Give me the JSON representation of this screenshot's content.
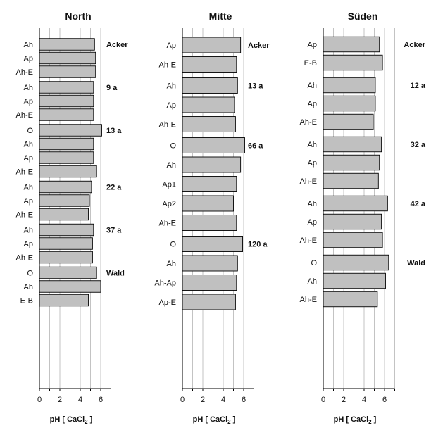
{
  "figure": {
    "xlabel": "pH [ CaCl",
    "xlabel_sub": "2",
    "xlabel_close": " ]"
  },
  "chart_data": [
    {
      "type": "bar",
      "orientation": "horizontal",
      "title": "North",
      "xlabel": "pH [ CaCl2 ]",
      "xlim": [
        0,
        7
      ],
      "xticks": [
        0,
        2,
        4,
        6
      ],
      "grid": true,
      "groups": [
        {
          "label": "Acker",
          "items": [
            {
              "label": "Ah",
              "value": 5.4
            },
            {
              "label": "Ap",
              "value": 5.5
            },
            {
              "label": "Ah-E",
              "value": 5.5
            }
          ]
        },
        {
          "label": "9 a",
          "items": [
            {
              "label": "Ah",
              "value": 5.3
            },
            {
              "label": "Ap",
              "value": 5.3
            },
            {
              "label": "Ah-E",
              "value": 5.3
            }
          ]
        },
        {
          "label": "13 a",
          "items": [
            {
              "label": "O",
              "value": 6.1
            },
            {
              "label": "Ah",
              "value": 5.3
            },
            {
              "label": "Ap",
              "value": 5.3
            },
            {
              "label": "Ah-E",
              "value": 5.6
            }
          ]
        },
        {
          "label": "22 a",
          "items": [
            {
              "label": "Ah",
              "value": 5.1
            },
            {
              "label": "Ap",
              "value": 4.9
            },
            {
              "label": "Ah-E",
              "value": 4.8
            }
          ]
        },
        {
          "label": "37 a",
          "items": [
            {
              "label": "Ah",
              "value": 5.3
            },
            {
              "label": "Ap",
              "value": 5.2
            },
            {
              "label": "Ah-E",
              "value": 5.2
            }
          ]
        },
        {
          "label": "Wald",
          "items": [
            {
              "label": "O",
              "value": 5.6
            },
            {
              "label": "Ah",
              "value": 6.0
            },
            {
              "label": "E-B",
              "value": 4.8
            }
          ]
        }
      ]
    },
    {
      "type": "bar",
      "orientation": "horizontal",
      "title": "Mitte",
      "xlabel": "pH [ CaCl2 ]",
      "xlim": [
        0,
        7
      ],
      "xticks": [
        0,
        2,
        4,
        6
      ],
      "grid": true,
      "groups": [
        {
          "label": "Acker",
          "items": [
            {
              "label": "Ap",
              "value": 5.7
            },
            {
              "label": "Ah-E",
              "value": 5.3
            }
          ]
        },
        {
          "label": "13 a",
          "items": [
            {
              "label": "Ah",
              "value": 5.4
            },
            {
              "label": "Ap",
              "value": 5.1
            },
            {
              "label": "Ah-E",
              "value": 5.2
            }
          ]
        },
        {
          "label": "66 a",
          "items": [
            {
              "label": "O",
              "value": 6.1
            },
            {
              "label": "Ah",
              "value": 5.7
            },
            {
              "label": "Ap1",
              "value": 5.3
            },
            {
              "label": "Ap2",
              "value": 5.0
            },
            {
              "label": "Ah-E",
              "value": 5.3
            }
          ]
        },
        {
          "label": "120 a",
          "items": [
            {
              "label": "O",
              "value": 5.9
            },
            {
              "label": "Ah",
              "value": 5.4
            },
            {
              "label": "Ah-Ap",
              "value": 5.3
            },
            {
              "label": "Ap-E",
              "value": 5.2
            }
          ]
        }
      ]
    },
    {
      "type": "bar",
      "orientation": "horizontal",
      "title": "Süden",
      "xlabel": "pH [ CaCl2 ]",
      "xlim": [
        0,
        7
      ],
      "xticks": [
        0,
        2,
        4,
        6
      ],
      "grid": true,
      "groups": [
        {
          "label": "Acker",
          "items": [
            {
              "label": "Ap",
              "value": 5.5
            },
            {
              "label": "E-B",
              "value": 5.8
            }
          ]
        },
        {
          "label": "12 a",
          "items": [
            {
              "label": "Ah",
              "value": 5.1
            },
            {
              "label": "Ap",
              "value": 5.1
            },
            {
              "label": "Ah-E",
              "value": 4.9
            }
          ]
        },
        {
          "label": "32 a",
          "items": [
            {
              "label": "Ah",
              "value": 5.7
            },
            {
              "label": "Ap",
              "value": 5.5
            },
            {
              "label": "Ah-E",
              "value": 5.4
            }
          ]
        },
        {
          "label": "42 a",
          "items": [
            {
              "label": "Ah",
              "value": 6.3
            },
            {
              "label": "Ap",
              "value": 5.7
            },
            {
              "label": "Ah-E",
              "value": 5.8
            }
          ]
        },
        {
          "label": "Wald",
          "items": [
            {
              "label": "O",
              "value": 6.4
            },
            {
              "label": "Ah",
              "value": 6.1
            },
            {
              "label": "Ah-E",
              "value": 5.3
            }
          ]
        }
      ]
    }
  ]
}
